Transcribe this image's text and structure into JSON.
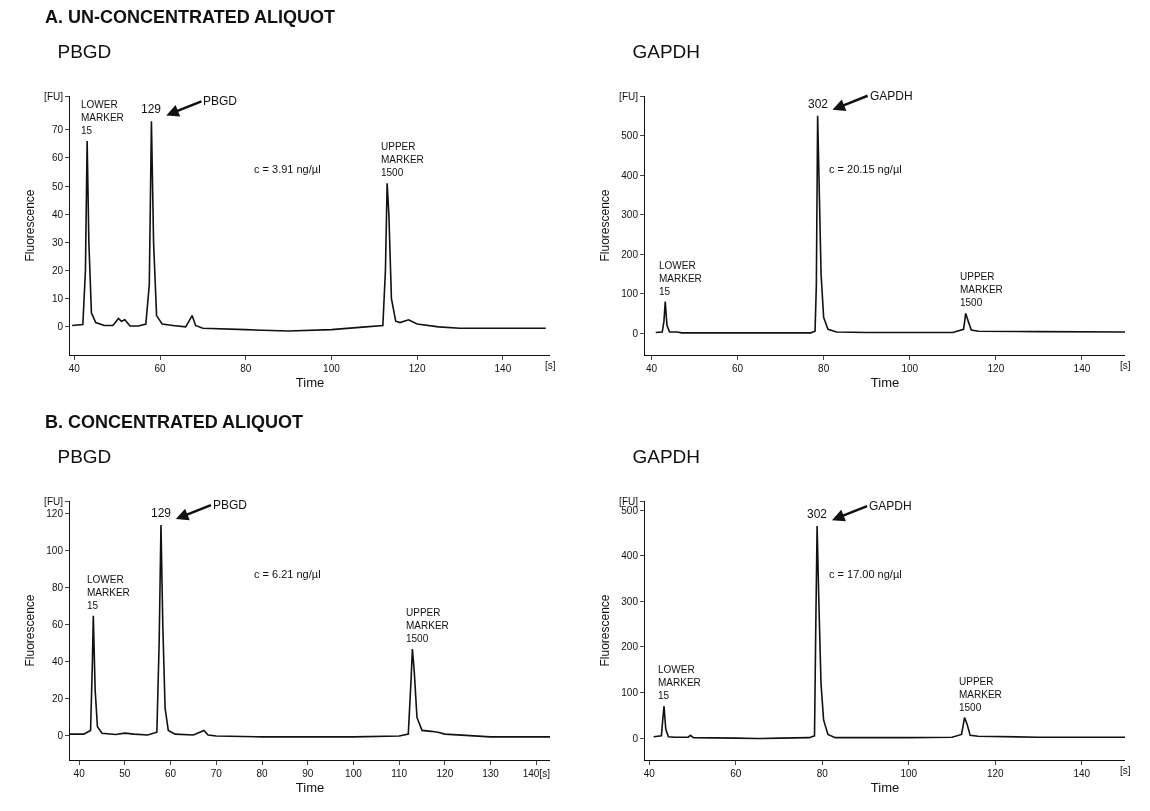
{
  "chart_data": [
    {
      "type": "line",
      "subtitle": "A. UN-CONCENTRATED ALIQUOT",
      "title": "PBGD",
      "xlabel": "Time",
      "ylabel": "Fluorescence",
      "xlim": [
        39,
        151
      ],
      "ylim": [
        -10,
        82
      ],
      "xticks": [
        40,
        60,
        80,
        100,
        120,
        140
      ],
      "yticks": [
        0,
        10,
        20,
        30,
        40,
        50,
        60,
        70,
        {
          "value": 82,
          "label": "[FU]"
        }
      ],
      "grid": false,
      "marker": "none",
      "line_style": "solid",
      "series": [
        {
          "color": "#111111",
          "x": [
            39.5,
            42,
            42.6,
            43,
            43.4,
            44,
            45,
            47,
            49,
            50.3,
            51,
            51.8,
            53,
            55,
            56.7,
            57.5,
            58,
            58.5,
            59.2,
            60.5,
            63,
            66,
            67.5,
            68.3,
            70,
            80,
            90,
            100,
            108,
            112,
            112.6,
            113,
            113.4,
            114,
            115,
            116,
            118,
            120,
            125,
            130,
            140,
            150
          ],
          "values": [
            0.5,
            0.8,
            20,
            66,
            30,
            5,
            1.5,
            0.5,
            0.5,
            3,
            2,
            2.5,
            0.3,
            0.3,
            1,
            15,
            73,
            30,
            4,
            1,
            0.5,
            0,
            4,
            0.5,
            -0.5,
            -1,
            -1.5,
            -1,
            0,
            0.5,
            20,
            51,
            40,
            10,
            2,
            1.5,
            2.5,
            1,
            0,
            -0.5,
            -0.5,
            -0.5
          ]
        }
      ],
      "annotations": [
        {
          "text": "LOWER\nMARKER\n15",
          "x": 43,
          "y": 66
        },
        {
          "text": "129",
          "x": 58,
          "y": 73
        },
        {
          "text": "PBGD",
          "x": 58,
          "y": 73
        },
        {
          "text": "UPPER\nMARKER\n1500",
          "x": 113,
          "y": 51
        },
        "c = 3.91 ng/µl",
        "[s]"
      ]
    },
    {
      "type": "line",
      "title": "GAPDH",
      "xlabel": "Time",
      "ylabel": "Fluorescence",
      "xlim": [
        38.5,
        150
      ],
      "ylim": [
        -55,
        600
      ],
      "xticks": [
        40,
        60,
        80,
        100,
        120,
        140
      ],
      "yticks": [
        0,
        100,
        200,
        300,
        400,
        500,
        {
          "value": 600,
          "label": "[FU]"
        }
      ],
      "grid": false,
      "marker": "none",
      "line_style": "solid",
      "series": [
        {
          "color": "#111111",
          "x": [
            41,
            42.5,
            42.9,
            43.2,
            43.6,
            44.2,
            46,
            47,
            60,
            77,
            78,
            78.3,
            78.6,
            79,
            79.4,
            80,
            81,
            83,
            90,
            100,
            110,
            112.5,
            113,
            113.6,
            114.3,
            116,
            130,
            150
          ],
          "values": [
            2,
            3,
            30,
            80,
            20,
            3,
            3,
            1,
            1,
            1,
            5,
            120,
            550,
            350,
            150,
            40,
            10,
            3,
            2,
            2,
            2,
            10,
            50,
            30,
            8,
            5,
            4,
            3
          ]
        }
      ],
      "annotations": [
        {
          "text": "LOWER\nMARKER\n15",
          "x": 43.2,
          "y": 80
        },
        {
          "text": "302",
          "x": 78.6,
          "y": 550
        },
        {
          "text": "GAPDH",
          "x": 78.6,
          "y": 550
        },
        {
          "text": "UPPER\nMARKER\n1500",
          "x": 113,
          "y": 50
        },
        "c = 20.15 ng/µl",
        "[s]"
      ]
    },
    {
      "type": "line",
      "subtitle": "B. CONCENTRATED ALIQUOT",
      "title": "PBGD",
      "xlabel": "Time",
      "ylabel": "Fluorescence",
      "xlim": [
        38,
        143
      ],
      "ylim": [
        -13,
        127
      ],
      "xticks": [
        40,
        50,
        60,
        70,
        80,
        90,
        100,
        110,
        120,
        130,
        {
          "value": 140,
          "label": "140[s]"
        }
      ],
      "yticks": [
        0,
        20,
        40,
        60,
        80,
        100,
        120,
        {
          "value": 127,
          "label": "[FU]"
        }
      ],
      "grid": false,
      "marker": "none",
      "line_style": "solid",
      "series": [
        {
          "color": "#111111",
          "x": [
            38,
            41,
            42.5,
            42.9,
            43.1,
            43.5,
            44,
            45,
            48,
            50,
            52,
            55,
            57,
            57.5,
            57.9,
            58.3,
            58.8,
            59.5,
            61,
            65,
            67.3,
            68.2,
            70,
            80,
            90,
            100,
            110,
            112,
            112.6,
            112.9,
            113.3,
            113.9,
            115,
            117,
            118.5,
            120,
            130,
            143
          ],
          "values": [
            1,
            1,
            3,
            40,
            65,
            25,
            5,
            1.5,
            0.8,
            1.5,
            1,
            0.5,
            2,
            50,
            114,
            60,
            15,
            3,
            1,
            0.5,
            3,
            0.5,
            0,
            -0.5,
            -0.5,
            -0.5,
            0,
            1,
            30,
            47,
            35,
            10,
            3,
            2.5,
            2,
            1,
            -0.5,
            -0.5
          ]
        }
      ],
      "annotations": [
        {
          "text": "LOWER\nMARKER\n15",
          "x": 43.1,
          "y": 65
        },
        {
          "text": "129",
          "x": 57.9,
          "y": 114
        },
        {
          "text": "PBGD",
          "x": 57.9,
          "y": 114
        },
        {
          "text": "UPPER\nMARKER\n1500",
          "x": 112.9,
          "y": 47
        },
        "c = 6.21 ng/µl"
      ]
    },
    {
      "type": "line",
      "title": "GAPDH",
      "xlabel": "Time",
      "ylabel": "Fluorescence",
      "xlim": [
        39,
        150
      ],
      "ylim": [
        -48,
        520
      ],
      "xticks": [
        40,
        60,
        80,
        100,
        120,
        140
      ],
      "yticks": [
        0,
        100,
        200,
        300,
        400,
        500,
        {
          "value": 520,
          "label": "[FU]"
        }
      ],
      "grid": false,
      "marker": "none",
      "line_style": "solid",
      "series": [
        {
          "color": "#111111",
          "x": [
            41,
            42.8,
            43.1,
            43.4,
            43.8,
            44.4,
            46,
            49,
            49.5,
            50.2,
            60,
            65,
            70,
            77,
            78.2,
            78.5,
            78.8,
            79.2,
            79.7,
            80.3,
            81.3,
            83,
            90,
            100,
            110,
            112.2,
            112.9,
            113.5,
            114.2,
            116,
            130,
            150
          ],
          "values": [
            3,
            5,
            40,
            70,
            20,
            3,
            2,
            2,
            6,
            1,
            0,
            -1,
            0,
            1,
            5,
            250,
            465,
            300,
            120,
            40,
            8,
            1,
            1,
            1,
            2,
            8,
            45,
            30,
            6,
            4,
            2,
            2
          ]
        }
      ],
      "annotations": [
        {
          "text": "LOWER\nMARKER\n15",
          "x": 43.4,
          "y": 70
        },
        {
          "text": "302",
          "x": 78.8,
          "y": 465
        },
        {
          "text": "GAPDH",
          "x": 78.8,
          "y": 465
        },
        {
          "text": "UPPER\nMARKER\n1500",
          "x": 112.9,
          "y": 45
        },
        "c = 17.00 ng/µl",
        "[s]"
      ]
    }
  ]
}
